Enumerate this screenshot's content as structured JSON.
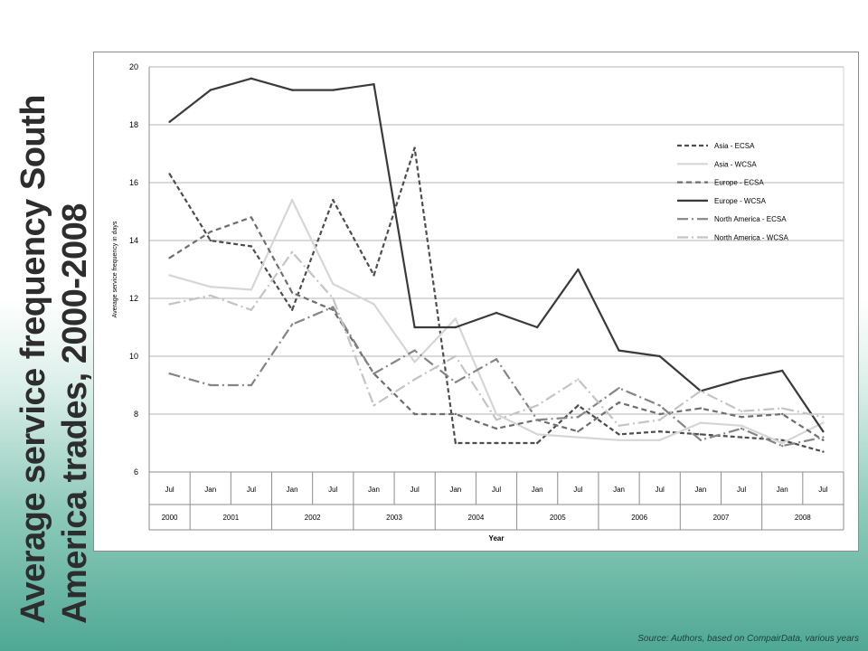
{
  "slide": {
    "title": "Average service frequency South America trades, 2000-2008",
    "source": "Source: Authors, based on CompairData, various years"
  },
  "chart_data": {
    "type": "line",
    "title": "",
    "xlabel": "Year",
    "ylabel": "Average service frequency in days",
    "ylim": [
      6,
      20
    ],
    "yticks": [
      6,
      8,
      10,
      12,
      14,
      16,
      18,
      20
    ],
    "grid": true,
    "legend_position": "right",
    "x": [
      "Jul",
      "Jan",
      "Jul",
      "Jan",
      "Jul",
      "Jan",
      "Jul",
      "Jan",
      "Jul",
      "Jan",
      "Jul",
      "Jan",
      "Jul",
      "Jan",
      "Jul",
      "Jan",
      "Jul"
    ],
    "years": [
      {
        "label": "2000",
        "span": 1
      },
      {
        "label": "2001",
        "span": 2
      },
      {
        "label": "2002",
        "span": 2
      },
      {
        "label": "2003",
        "span": 2
      },
      {
        "label": "2004",
        "span": 2
      },
      {
        "label": "2005",
        "span": 2
      },
      {
        "label": "2006",
        "span": 2
      },
      {
        "label": "2007",
        "span": 2
      },
      {
        "label": "2008",
        "span": 2
      }
    ],
    "series": [
      {
        "name": "Asia - ECSA",
        "color": "#4d4d4d",
        "dash": "5,3",
        "values": [
          16.3,
          14.0,
          13.8,
          11.6,
          15.4,
          12.8,
          17.2,
          7.0,
          7.0,
          7.0,
          8.3,
          7.3,
          7.4,
          7.3,
          7.2,
          7.1,
          6.7
        ]
      },
      {
        "name": "Asia - WCSA",
        "color": "#d6d6d6",
        "dash": "",
        "values": [
          12.8,
          12.4,
          12.3,
          15.4,
          12.5,
          11.8,
          9.8,
          11.3,
          8.0,
          7.3,
          7.2,
          7.1,
          7.1,
          7.7,
          7.6,
          7.0,
          7.7
        ]
      },
      {
        "name": "Europe - ECSA",
        "color": "#6e6e6e",
        "dash": "6,4",
        "values": [
          13.4,
          14.3,
          14.8,
          12.2,
          11.6,
          9.4,
          8.0,
          8.0,
          7.5,
          7.8,
          7.4,
          8.4,
          8.0,
          8.2,
          7.9,
          8.0,
          7.1
        ]
      },
      {
        "name": "Europe - WCSA",
        "color": "#3a3a3a",
        "dash": "",
        "values": [
          18.1,
          19.2,
          19.6,
          19.2,
          19.2,
          19.4,
          11.0,
          11.0,
          11.5,
          11.0,
          13.0,
          10.2,
          10.0,
          8.8,
          9.2,
          9.5,
          7.4
        ]
      },
      {
        "name": "North America - ECSA",
        "color": "#858585",
        "dash": "12,4,2,4",
        "values": [
          9.4,
          9.0,
          9.0,
          11.1,
          11.7,
          9.4,
          10.2,
          9.1,
          9.9,
          7.8,
          7.9,
          8.9,
          8.3,
          7.1,
          7.5,
          6.9,
          7.2
        ]
      },
      {
        "name": "North America - WCSA",
        "color": "#c4c4c4",
        "dash": "12,4,2,4",
        "values": [
          11.8,
          12.1,
          11.6,
          13.6,
          12.0,
          8.3,
          9.2,
          10.0,
          7.8,
          8.3,
          9.2,
          7.6,
          7.8,
          8.8,
          8.1,
          8.2,
          7.9
        ]
      }
    ]
  }
}
